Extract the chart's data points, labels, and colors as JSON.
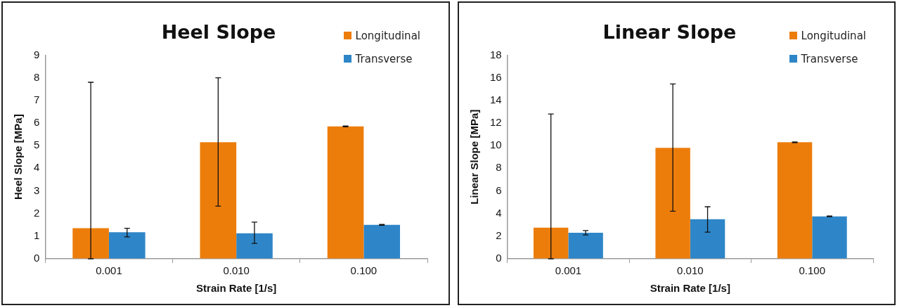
{
  "chart_data": [
    {
      "type": "bar",
      "title": "Heel Slope",
      "xlabel": "Strain Rate [1/s]",
      "ylabel": "Heel Slope [MPa]",
      "categories": [
        "0.001",
        "0.010",
        "0.100"
      ],
      "series": [
        {
          "name": "Longitudinal",
          "color": "#ed7d0b",
          "values": [
            1.35,
            5.15,
            5.85
          ],
          "errors": [
            [
              0,
              7.8
            ],
            [
              2.33,
              8.0
            ],
            [
              5.83,
              5.87
            ]
          ]
        },
        {
          "name": "Transverse",
          "color": "#2e86c8",
          "values": [
            1.17,
            1.13,
            1.5
          ],
          "errors": [
            [
              0.97,
              1.35
            ],
            [
              0.68,
              1.62
            ],
            [
              1.48,
              1.52
            ]
          ]
        }
      ],
      "ylim": [
        0,
        9
      ],
      "yticks": [
        0,
        1,
        2,
        3,
        4,
        5,
        6,
        7,
        8,
        9
      ],
      "grid": false,
      "legend": "top right"
    },
    {
      "type": "bar",
      "title": "Linear Slope",
      "xlabel": "Strain Rate [1/s]",
      "ylabel": "Linear Slope [MPa]",
      "categories": [
        "0.001",
        "0.010",
        "0.100"
      ],
      "series": [
        {
          "name": "Longitudinal",
          "color": "#ed7d0b",
          "values": [
            2.75,
            9.8,
            10.3
          ],
          "errors": [
            [
              0,
              12.8
            ],
            [
              4.2,
              15.45
            ],
            [
              10.27,
              10.33
            ]
          ]
        },
        {
          "name": "Transverse",
          "color": "#2e86c8",
          "values": [
            2.3,
            3.5,
            3.75
          ],
          "errors": [
            [
              2.1,
              2.5
            ],
            [
              2.35,
              4.6
            ],
            [
              3.72,
              3.78
            ]
          ]
        }
      ],
      "ylim": [
        0,
        18
      ],
      "yticks": [
        0,
        2,
        4,
        6,
        8,
        10,
        12,
        14,
        16,
        18
      ],
      "grid": false,
      "legend": "top right"
    }
  ]
}
